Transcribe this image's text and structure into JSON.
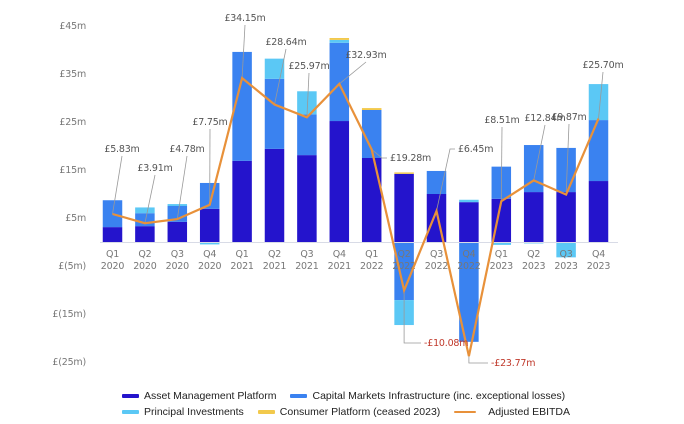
{
  "chart_data": {
    "type": "bar",
    "stacked": true,
    "title": "",
    "xlabel": "",
    "ylabel": "",
    "ylim": [
      -25,
      45
    ],
    "yticks": [
      {
        "value": 45,
        "label": "£45m"
      },
      {
        "value": 35,
        "label": "£35m"
      },
      {
        "value": 25,
        "label": "£25m"
      },
      {
        "value": 15,
        "label": "£15m"
      },
      {
        "value": 5,
        "label": "£5m"
      },
      {
        "value": -5,
        "label": "£(5m)"
      },
      {
        "value": -15,
        "label": "£(15m)"
      },
      {
        "value": -25,
        "label": "£(25m)"
      }
    ],
    "categories": [
      {
        "q": "Q1",
        "y": "2020"
      },
      {
        "q": "Q2",
        "y": "2020"
      },
      {
        "q": "Q3",
        "y": "2020"
      },
      {
        "q": "Q4",
        "y": "2020"
      },
      {
        "q": "Q1",
        "y": "2021"
      },
      {
        "q": "Q2",
        "y": "2021"
      },
      {
        "q": "Q3",
        "y": "2021"
      },
      {
        "q": "Q4",
        "y": "2021"
      },
      {
        "q": "Q1",
        "y": "2022"
      },
      {
        "q": "Q2",
        "y": "2022"
      },
      {
        "q": "Q3",
        "y": "2022"
      },
      {
        "q": "Q4",
        "y": "2022"
      },
      {
        "q": "Q1",
        "y": "2023"
      },
      {
        "q": "Q2",
        "y": "2023"
      },
      {
        "q": "Q3",
        "y": "2023"
      },
      {
        "q": "Q4",
        "y": "2023"
      }
    ],
    "series": [
      {
        "name": "Asset Management Platform",
        "color": "#2414cc",
        "values": [
          3.1,
          3.3,
          4.2,
          6.9,
          16.9,
          19.4,
          18.1,
          25.2,
          17.5,
          14.2,
          10.0,
          8.3,
          9.0,
          10.4,
          10.4,
          12.7
        ]
      },
      {
        "name": "Capital Markets Infrastructure (inc. exceptional losses)",
        "color": "#3a82f0",
        "values": [
          5.6,
          2.7,
          3.3,
          5.4,
          22.7,
          14.6,
          8.5,
          16.3,
          10.0,
          -12.1,
          4.8,
          -20.8,
          6.7,
          9.8,
          9.2,
          12.7
        ]
      },
      {
        "name": "Principal Investments",
        "color": "#5bc8f5",
        "values": [
          0.0,
          1.2,
          0.4,
          -0.5,
          0.0,
          4.2,
          4.8,
          0.6,
          0.0,
          -5.2,
          0.0,
          0.5,
          -0.6,
          -0.3,
          -3.2,
          7.5
        ]
      },
      {
        "name": "Consumer Platform (ceased 2023)",
        "color": "#f2c94c",
        "values": [
          0.0,
          0.0,
          0.0,
          0.0,
          0.0,
          0.0,
          0.0,
          0.4,
          0.4,
          0.3,
          0.0,
          0.0,
          0.0,
          0.0,
          0.0,
          0.0
        ]
      }
    ],
    "line": {
      "name": "Adjusted EBITDA",
      "color": "#e8913a",
      "values": [
        5.83,
        3.91,
        4.78,
        7.75,
        34.15,
        28.64,
        25.97,
        32.93,
        19.28,
        -10.08,
        6.45,
        -23.77,
        8.51,
        12.84,
        9.87,
        25.7
      ],
      "labels": [
        "£5.83m",
        "£3.91m",
        "£4.78m",
        "£7.75m",
        "£34.15m",
        "£28.64m",
        "£25.97m",
        "£32.93m",
        "£19.28m",
        "-£10.08m",
        "£6.45m",
        "-£23.77m",
        "£8.51m",
        "£12.84m",
        "£9.87m",
        "£25.70m"
      ]
    },
    "grid": false,
    "legend_position": "bottom",
    "colors": {
      "axis_text": "#777777",
      "annotation_text": "#555555",
      "negative_annotation_text": "#c0392b",
      "leader_line": "#999999",
      "baseline": "#d8dbe6"
    }
  },
  "legend": {
    "items": [
      {
        "label": "Asset Management Platform",
        "color": "#2414cc",
        "kind": "bar"
      },
      {
        "label": "Capital Markets Infrastructure (inc. exceptional losses)",
        "color": "#3a82f0",
        "kind": "bar"
      },
      {
        "label": "Principal Investments",
        "color": "#5bc8f5",
        "kind": "bar"
      },
      {
        "label": "Consumer Platform (ceased 2023)",
        "color": "#f2c94c",
        "kind": "bar"
      },
      {
        "label": "Adjusted EBITDA",
        "color": "#e8913a",
        "kind": "line"
      }
    ]
  }
}
